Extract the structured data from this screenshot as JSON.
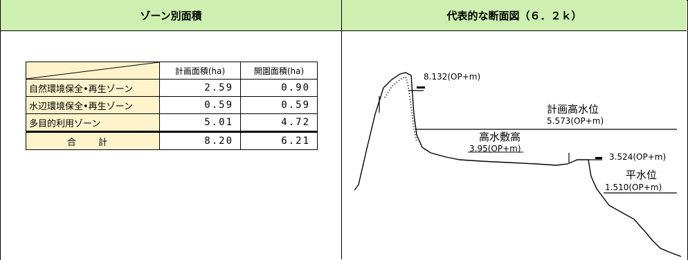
{
  "left_header": "ゾーン別面積",
  "right_header": "代表的な断面図（６．２ｋ）",
  "table": {
    "col_headers": [
      "計画面積(ha)",
      "開園面積(ha)"
    ],
    "rows": [
      {
        "name": "自然環境保全•再生ゾーン",
        "planned": "2.59",
        "opened": "0.90"
      },
      {
        "name": "水辺環境保全•再生ゾーン",
        "planned": "0.59",
        "opened": "0.59"
      },
      {
        "name": "多目的利用ゾーン",
        "planned": "5.01",
        "opened": "4.72"
      }
    ],
    "total": {
      "name": "合 計",
      "planned": "8.20",
      "opened": "6.21"
    }
  },
  "cross_section": {
    "top_level": "8.132(OP+m)",
    "plan_high_water_label": "計画高水位",
    "plan_high_water_value": "5.573(OP+m)",
    "high_floodplain_label": "高水敷高",
    "high_floodplain_value": "3.95(OP+m)",
    "right_level": "3.524(OP+m)",
    "normal_water_label": "平水位",
    "normal_water_value": "1.510(OP+m)"
  }
}
